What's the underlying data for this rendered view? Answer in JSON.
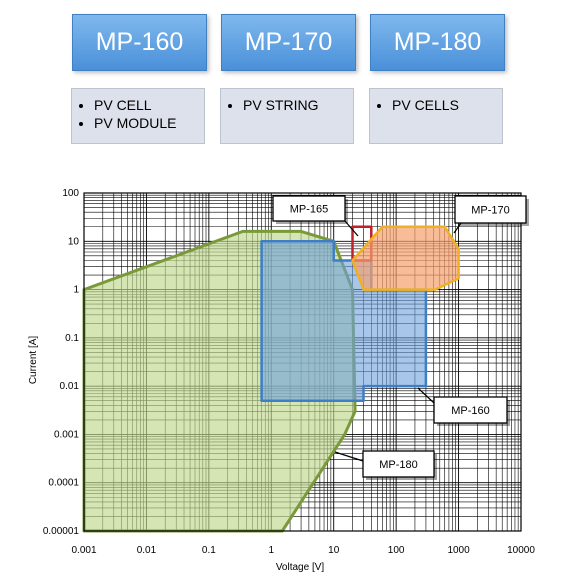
{
  "models": [
    {
      "name": "MP-160",
      "items": [
        "PV CELL",
        "PV MODULE"
      ]
    },
    {
      "name": "MP-170",
      "items": [
        "PV STRING"
      ]
    },
    {
      "name": "MP-180",
      "items": [
        "PV CELLS"
      ]
    }
  ],
  "colors": {
    "mp160": "#3d7ec4",
    "mp165": "#c0202a",
    "mp170": "#f0b020",
    "mp180": "#7a9a3a",
    "tile": "#5a9be0",
    "grid": "#000000"
  },
  "chart_data": {
    "type": "area",
    "xlabel": "Voltage [V]",
    "ylabel": "Current [A]",
    "xscale": "log",
    "yscale": "log",
    "xlim": [
      0.001,
      10000
    ],
    "ylim": [
      1e-05,
      100
    ],
    "xticks": [
      "0.001",
      "0.01",
      "0.1",
      "1",
      "10",
      "100",
      "1000",
      "10000"
    ],
    "yticks": [
      "0.00001",
      "0.0001",
      "0.001",
      "0.01",
      "0.1",
      "1",
      "10",
      "100"
    ],
    "grid": true,
    "regions": [
      {
        "name": "MP-180",
        "label": "MP-180",
        "points": [
          [
            0.001,
            1
          ],
          [
            0.35,
            16
          ],
          [
            3,
            16
          ],
          [
            10,
            10
          ],
          [
            20,
            1
          ],
          [
            22,
            0.003
          ],
          [
            15,
            0.001
          ],
          [
            1.5,
            1e-05
          ],
          [
            0.001,
            1e-05
          ]
        ]
      },
      {
        "name": "MP-160",
        "label": "MP-160",
        "points": [
          [
            0.7,
            10
          ],
          [
            10,
            10
          ],
          [
            10,
            4
          ],
          [
            40,
            4
          ],
          [
            40,
            1
          ],
          [
            300,
            1
          ],
          [
            300,
            0.01
          ],
          [
            30,
            0.01
          ],
          [
            30,
            0.005
          ],
          [
            0.7,
            0.005
          ]
        ]
      },
      {
        "name": "MP-165",
        "label": "MP-165",
        "points": [
          [
            20,
            4
          ],
          [
            20,
            20
          ],
          [
            40,
            20
          ],
          [
            40,
            4
          ]
        ]
      },
      {
        "name": "MP-170",
        "label": "MP-170",
        "points": [
          [
            20,
            4
          ],
          [
            60,
            20
          ],
          [
            600,
            20
          ],
          [
            1000,
            7
          ],
          [
            1000,
            1.7
          ],
          [
            420,
            1
          ],
          [
            30,
            1
          ]
        ]
      }
    ],
    "annotations": [
      "MP-165",
      "MP-170",
      "MP-160",
      "MP-180"
    ]
  }
}
